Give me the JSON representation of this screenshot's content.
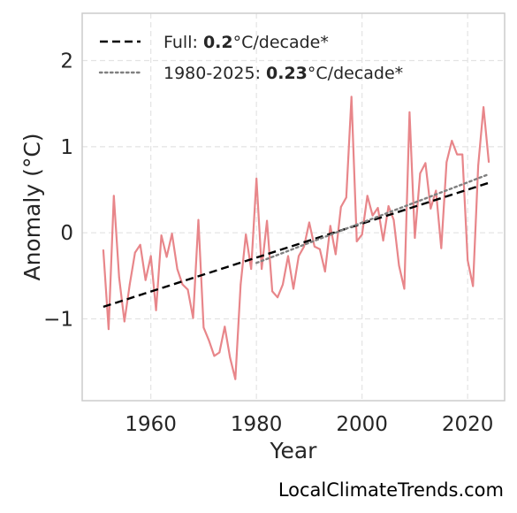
{
  "chart_data": {
    "type": "line",
    "xlabel": "Year",
    "ylabel": "Anomaly (°C)",
    "xlim": [
      1947,
      2027
    ],
    "ylim": [
      -1.95,
      2.55
    ],
    "xticks": [
      1960,
      1980,
      2000,
      2020
    ],
    "yticks": [
      -1,
      0,
      1,
      2
    ],
    "ytick_labels": [
      "−1",
      "0",
      "1",
      "2"
    ],
    "grid": true,
    "legend_position": "top-left",
    "series": [
      {
        "color": "#e8868a",
        "x": [
          1951,
          1952,
          1953,
          1954,
          1955,
          1956,
          1957,
          1958,
          1959,
          1960,
          1961,
          1962,
          1963,
          1964,
          1965,
          1966,
          1967,
          1968,
          1969,
          1970,
          1971,
          1972,
          1973,
          1974,
          1975,
          1976,
          1977,
          1978,
          1979,
          1980,
          1981,
          1982,
          1983,
          1984,
          1985,
          1986,
          1987,
          1988,
          1989,
          1990,
          1991,
          1992,
          1993,
          1994,
          1995,
          1996,
          1997,
          1998,
          1999,
          2000,
          2001,
          2002,
          2003,
          2004,
          2005,
          2006,
          2007,
          2008,
          2009,
          2010,
          2011,
          2012,
          2013,
          2014,
          2015,
          2016,
          2017,
          2018,
          2019,
          2020,
          2021,
          2022,
          2023,
          2024
        ],
        "y": [
          -0.2,
          -1.12,
          0.43,
          -0.52,
          -1.03,
          -0.6,
          -0.23,
          -0.14,
          -0.55,
          -0.27,
          -0.9,
          -0.03,
          -0.28,
          -0.01,
          -0.42,
          -0.6,
          -0.66,
          -0.99,
          0.15,
          -1.1,
          -1.25,
          -1.43,
          -1.39,
          -1.09,
          -1.45,
          -1.7,
          -0.6,
          -0.02,
          -0.42,
          0.63,
          -0.42,
          0.14,
          -0.68,
          -0.75,
          -0.6,
          -0.27,
          -0.65,
          -0.27,
          -0.16,
          0.12,
          -0.16,
          -0.19,
          -0.45,
          0.08,
          -0.25,
          0.3,
          0.41,
          1.58,
          -0.1,
          -0.02,
          0.43,
          0.2,
          0.29,
          -0.09,
          0.31,
          0.15,
          -0.38,
          -0.65,
          1.4,
          -0.06,
          0.69,
          0.81,
          0.28,
          0.49,
          -0.18,
          0.82,
          1.07,
          0.91,
          0.91,
          -0.32,
          -0.62,
          0.78,
          1.46,
          0.82
        ]
      },
      {
        "name": "Full",
        "style": "dashed",
        "color": "#000000",
        "x": [
          1951,
          2024
        ],
        "y": [
          -0.86,
          0.58
        ]
      },
      {
        "name": "1980-2025",
        "style": "dotted",
        "color": "#808080",
        "x": [
          1980,
          2024
        ],
        "y": [
          -0.35,
          0.68
        ]
      }
    ],
    "legend": [
      {
        "prefix": "Full: ",
        "value": "0.2",
        "suffix": "°C/decade*",
        "style": "dashed",
        "color": "#000000"
      },
      {
        "prefix": "1980-2025: ",
        "value": "0.23",
        "suffix": "°C/decade*",
        "style": "dotted",
        "color": "#808080"
      }
    ],
    "annotation": "LocalClimateTrends.com"
  }
}
